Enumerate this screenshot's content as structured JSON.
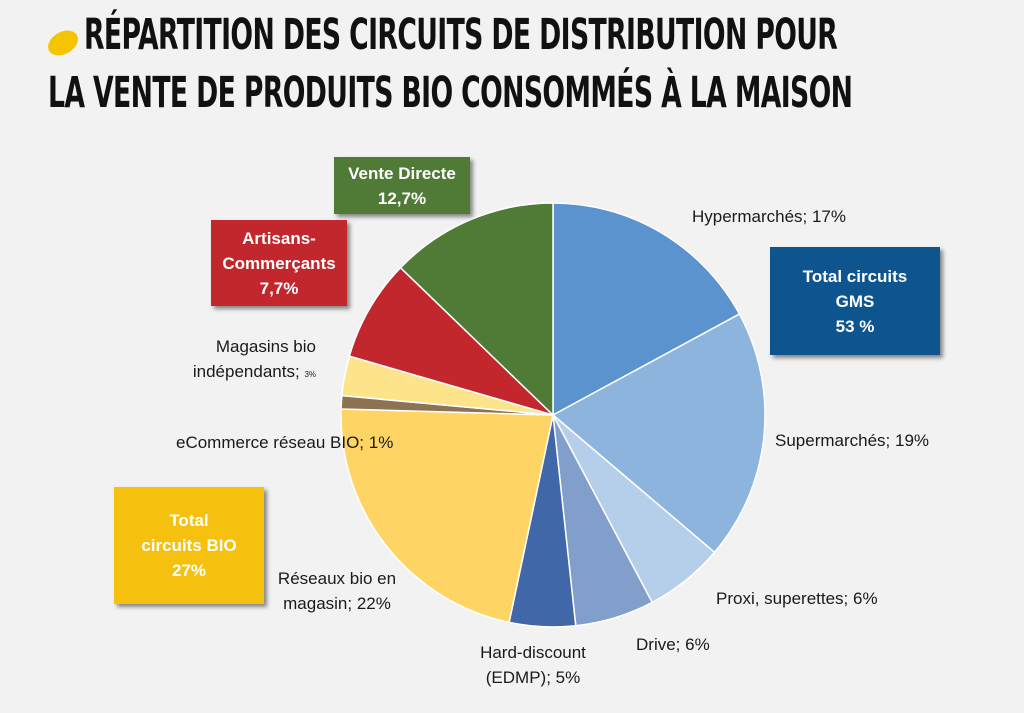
{
  "title": {
    "line1": "RÉPARTITION DES CIRCUITS DE DISTRIBUTION POUR",
    "line2": "LA VENTE DE PRODUITS BIO CONSOMMÉS À LA MAISON"
  },
  "chart_data": {
    "type": "pie",
    "title": "Répartition des circuits de distribution pour la vente de produits bio consommés à la maison",
    "slices": [
      {
        "name": "Hypermarchés",
        "value": 17,
        "label": "Hypermarchés; 17%",
        "color": "#5a93cd"
      },
      {
        "name": "Supermarchés",
        "value": 19,
        "label": "Supermarchés; 19%",
        "color": "#8cb4dd"
      },
      {
        "name": "Proxi, superettes",
        "value": 6,
        "label": "Proxi, superettes; 6%",
        "color": "#b5cfea"
      },
      {
        "name": "Drive",
        "value": 6,
        "label": "Drive; 6%",
        "color": "#829fcc"
      },
      {
        "name": "Hard-discount (EDMP)",
        "value": 5,
        "label": "Hard-discount (EDMP); 5%",
        "color": "#4068a8"
      },
      {
        "name": "Réseaux bio en magasin",
        "value": 22,
        "label": "Réseaux bio en magasin; 22%",
        "color": "#fed564"
      },
      {
        "name": "eCommerce réseau BIO",
        "value": 1,
        "label": "eCommerce réseau BIO; 1%",
        "color": "#8c7354"
      },
      {
        "name": "Magasins bio indépendants",
        "value": 3,
        "label": "Magasins bio indépendants; 3%",
        "color": "#fde48a"
      },
      {
        "name": "Artisans-Commerçants",
        "value": 7.7,
        "label": "Artisans-Commerçants 7,7%",
        "color": "#c1272d"
      },
      {
        "name": "Vente Directe",
        "value": 12.7,
        "label": "Vente Directe 12,7%",
        "color": "#4f7b37"
      }
    ],
    "group_totals": [
      {
        "name": "Total circuits GMS",
        "value": 53
      },
      {
        "name": "Total circuits BIO",
        "value": 27
      }
    ]
  },
  "labels": {
    "hyper": "Hypermarchés; 17%",
    "super": "Supermarchés; 19%",
    "proxi": "Proxi, superettes; 6%",
    "drive": "Drive; 6%",
    "hard_line1": "Hard-discount",
    "hard_line2": "(EDMP); 5%",
    "reseaux_line1": "Réseaux bio en",
    "reseaux_line2": "magasin; 22%",
    "ecommerce": "eCommerce réseau BIO; 1%",
    "magasins_line1": "Magasins bio",
    "magasins_line2": "indépendants;",
    "magasins_pct": "3%"
  },
  "boxes": {
    "vente_directe": {
      "line1": "Vente Directe",
      "line2": "12,7%",
      "color": "#4f7b37"
    },
    "artisans": {
      "line1": "Artisans-",
      "line2": "Commerçants",
      "line3": "7,7%",
      "color": "#c1272d"
    },
    "gms": {
      "line1": "Total circuits",
      "line2": "GMS",
      "line3": "53 %",
      "color": "#0e5590"
    },
    "bio": {
      "line1": "Total",
      "line2": "circuits BIO",
      "line3": "27%",
      "color": "#f5c10e"
    }
  }
}
